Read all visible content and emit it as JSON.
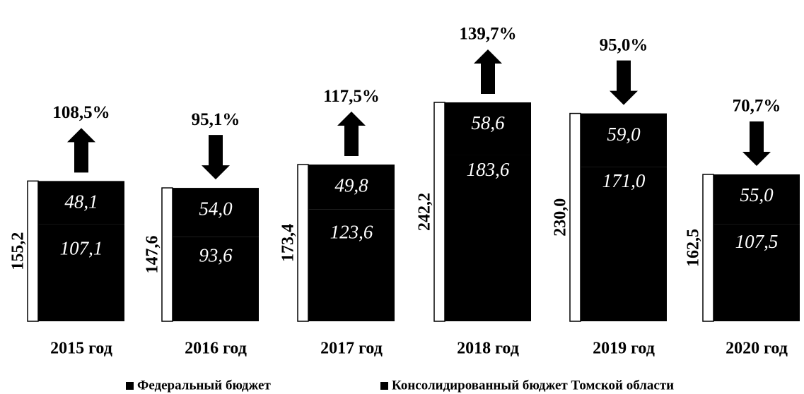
{
  "chart_data": {
    "type": "bar",
    "categories": [
      "2015 год",
      "2016 год",
      "2017 год",
      "2018 год",
      "2019 год",
      "2020 год"
    ],
    "series": [
      {
        "name": "Федеральный бюджет",
        "color": "#000000",
        "values": [
          48.1,
          54.0,
          49.8,
          58.6,
          59.0,
          55.0
        ],
        "value_labels": [
          "48,1",
          "54,0",
          "49,8",
          "58,6",
          "59,0",
          "55,0"
        ]
      },
      {
        "name": "Консолидированный бюджет Томской области",
        "color": "#000000",
        "values": [
          107.1,
          93.6,
          123.6,
          183.6,
          171.0,
          107.5
        ],
        "value_labels": [
          "107,1",
          "93,6",
          "123,6",
          "183,6",
          "171,0",
          "107,5"
        ]
      }
    ],
    "totals": [
      155.2,
      147.6,
      173.4,
      242.2,
      230.0,
      162.5
    ],
    "total_labels": [
      "155,2",
      "147,6",
      "173,4",
      "242,2",
      "230,0",
      "162,5"
    ],
    "growth": [
      108.5,
      95.1,
      117.5,
      139.7,
      95.0,
      70.7
    ],
    "growth_labels": [
      "108,5%",
      "95,1%",
      "117,5%",
      "139,7%",
      "95,0%",
      "70,7%"
    ],
    "ylim": [
      0,
      250
    ]
  }
}
